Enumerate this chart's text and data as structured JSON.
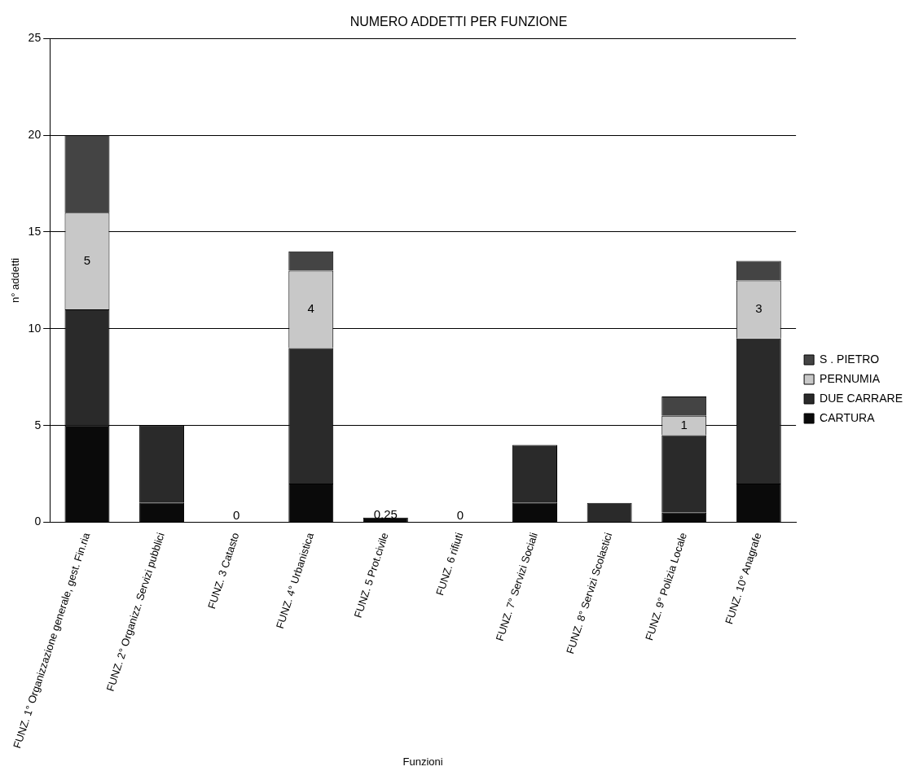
{
  "chart_data": {
    "type": "bar",
    "stacked": true,
    "title": "NUMERO ADDETTI PER FUNZIONE",
    "xlabel": "Funzioni",
    "ylabel": "n° addetti",
    "categories": [
      "FUNZ. 1° Organizzazione generale, gest. Fin.ria",
      "FUNZ. 2° Organizz. Servizi pubblici",
      "FUNZ. 3 Catasto",
      "FUNZ. 4° Urbanistica",
      "FUNZ. 5 Prot.civile",
      "FUNZ. 6 rifiuti",
      "FUNZ. 7° Servizi Sociali",
      "FUNZ. 8° Servizi Scolastici",
      "FUNZ. 9° Polizia Locale",
      "FUNZ. 10° Anagrafe"
    ],
    "series": [
      {
        "name": "CARTURA",
        "color": "#0a0a0a",
        "values": [
          5,
          1,
          0,
          2,
          0.25,
          0,
          1,
          0,
          0.5,
          2
        ],
        "value_labels": [
          null,
          null,
          "0",
          null,
          "0,25",
          "0",
          null,
          null,
          null,
          null
        ]
      },
      {
        "name": "DUE CARRARE",
        "color": "#2a2a2a",
        "values": [
          6,
          4,
          0,
          7,
          0,
          0,
          3,
          1,
          4,
          7.5
        ]
      },
      {
        "name": "PERNUMIA",
        "color": "#c8c8c8",
        "values": [
          5,
          0,
          0,
          4,
          0,
          0,
          0,
          0,
          1,
          3
        ],
        "value_labels": [
          "5",
          null,
          null,
          "4",
          null,
          null,
          null,
          null,
          "1",
          "3"
        ]
      },
      {
        "name": "S . PIETRO",
        "color": "#444444",
        "values": [
          4,
          0,
          0,
          1,
          0,
          0,
          0,
          0,
          1,
          1
        ]
      }
    ],
    "ylim": [
      0,
      25
    ],
    "yticks": [
      0,
      5,
      10,
      15,
      20,
      25
    ],
    "grid": "y",
    "legend": "right"
  }
}
